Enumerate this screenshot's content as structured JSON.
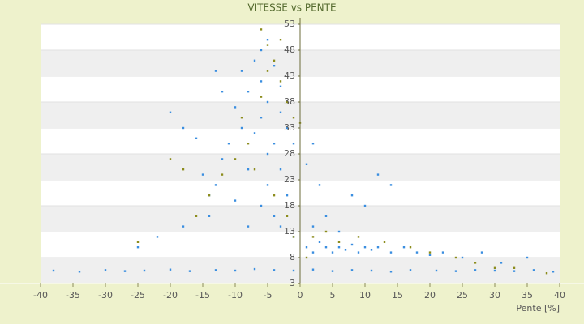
{
  "chart_data": {
    "type": "scatter",
    "title": "VITESSE vs PENTE",
    "x_label": "Pente [%]",
    "xlim": [
      -40,
      40
    ],
    "xticks": [
      -40,
      -35,
      -30,
      -25,
      -20,
      -15,
      -10,
      -5,
      0,
      5,
      10,
      15,
      20,
      25,
      30,
      35,
      40
    ],
    "ylim": [
      3,
      53
    ],
    "yticks": [
      3,
      8,
      13,
      18,
      23,
      28,
      33,
      38,
      43,
      48,
      53
    ],
    "series": [
      {
        "color": "#3a8ee0",
        "x": [
          -38,
          -34,
          -30,
          -27,
          -24,
          -20,
          -17,
          -13,
          -10,
          -7,
          -4,
          -1,
          2,
          5,
          8,
          11,
          14,
          17,
          21,
          24,
          27,
          30,
          33,
          36,
          39,
          -6,
          -5,
          -7,
          -4,
          -8,
          -3,
          -5,
          -9,
          -10,
          -6,
          -4,
          -7,
          -2,
          -3,
          -5,
          -8,
          -11,
          -12,
          -13,
          -14,
          -15,
          -16,
          -20,
          -18,
          -12,
          -9,
          -6,
          -5,
          -3,
          -1,
          -2,
          -4,
          -6,
          -1,
          -3,
          -8,
          -10,
          -14,
          -18,
          -22,
          -25,
          -13,
          1,
          2,
          3,
          4,
          5,
          6,
          7,
          8,
          9,
          10,
          11,
          12,
          14,
          16,
          18,
          20,
          22,
          25,
          28,
          31,
          35,
          2,
          4,
          6,
          10,
          14,
          8,
          3,
          1,
          2,
          12
        ],
        "y": [
          5.5,
          5.3,
          5.6,
          5.4,
          5.5,
          5.7,
          5.4,
          5.6,
          5.5,
          5.8,
          5.6,
          5.5,
          5.7,
          5.4,
          5.6,
          5.5,
          5.3,
          5.6,
          5.5,
          5.4,
          5.6,
          5.5,
          5.4,
          5.6,
          5.3,
          35,
          38,
          32,
          30,
          40,
          36,
          28,
          33,
          37,
          42,
          45,
          46,
          33,
          25,
          22,
          25,
          30,
          27,
          22,
          20,
          24,
          31,
          36,
          33,
          40,
          44,
          48,
          50,
          41,
          30,
          20,
          16,
          18,
          12,
          14,
          14,
          19,
          16,
          14,
          12,
          10,
          44,
          10,
          9,
          11,
          10,
          9,
          10,
          9.5,
          10.5,
          9,
          10,
          9.5,
          10,
          9,
          10,
          9,
          8.5,
          9,
          8,
          9,
          7,
          8,
          14,
          16,
          13,
          18,
          22,
          20,
          22,
          26,
          30,
          24
        ]
      },
      {
        "color": "#8c8c1c",
        "x": [
          -6,
          -5,
          -4,
          -3,
          -2,
          -1,
          0,
          -8,
          -10,
          -12,
          -14,
          -16,
          -7,
          -4,
          -2,
          -1,
          1,
          2,
          4,
          6,
          9,
          13,
          17,
          20,
          24,
          27,
          30,
          33,
          38,
          -20,
          -18,
          -25,
          -3,
          -5,
          -6,
          -9
        ],
        "y": [
          52,
          49,
          46,
          42,
          38,
          35,
          34,
          30,
          27,
          24,
          20,
          16,
          25,
          20,
          16,
          12,
          8,
          12,
          13,
          11,
          12,
          11,
          10,
          9,
          8,
          7,
          6,
          6,
          5,
          27,
          25,
          11,
          50,
          44,
          39,
          35
        ]
      }
    ]
  }
}
